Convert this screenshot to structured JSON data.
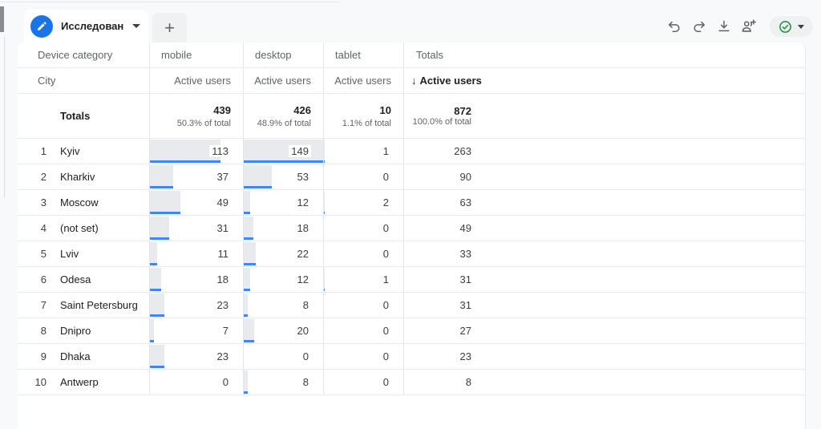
{
  "tab_bar": {
    "active_tab": {
      "label": "Исследовани…",
      "icon": "pencil-icon"
    },
    "new_tab_label": "+",
    "toolbar": {
      "icons": [
        "undo-icon",
        "redo-icon",
        "download-icon",
        "person-add-icon"
      ],
      "status_button": {
        "icon": "check-circle-icon",
        "state_color": "#1e8e3e"
      }
    }
  },
  "colors": {
    "accent_blue": "#1a73e8",
    "bar_blue": "#4285f4",
    "bar_gray": "#e9eaed",
    "status_green": "#1e8e3e"
  },
  "table": {
    "header": {
      "dimension_label": "Device category",
      "columns": [
        "mobile",
        "desktop",
        "tablet"
      ],
      "totals_label": "Totals",
      "row_dimension": "City",
      "metric_label": "Active users",
      "totals_metric_label": "Active users",
      "sort_icon": "↓"
    },
    "totals_row": {
      "label": "Totals",
      "cells": [
        {
          "value": "439",
          "pct": "50.3% of total"
        },
        {
          "value": "426",
          "pct": "48.9% of total"
        },
        {
          "value": "10",
          "pct": "1.1% of total"
        },
        {
          "value": "872",
          "pct": "100.0% of total"
        }
      ]
    },
    "max_value": 149,
    "rows": [
      {
        "rank": "1",
        "city": "Kyiv",
        "mobile": 113,
        "desktop": 149,
        "tablet": 1,
        "total": 263
      },
      {
        "rank": "2",
        "city": "Kharkiv",
        "mobile": 37,
        "desktop": 53,
        "tablet": 0,
        "total": 90
      },
      {
        "rank": "3",
        "city": "Moscow",
        "mobile": 49,
        "desktop": 12,
        "tablet": 2,
        "total": 63
      },
      {
        "rank": "4",
        "city": "(not set)",
        "mobile": 31,
        "desktop": 18,
        "tablet": 0,
        "total": 49
      },
      {
        "rank": "5",
        "city": "Lviv",
        "mobile": 11,
        "desktop": 22,
        "tablet": 0,
        "total": 33
      },
      {
        "rank": "6",
        "city": "Odesa",
        "mobile": 18,
        "desktop": 12,
        "tablet": 1,
        "total": 31
      },
      {
        "rank": "7",
        "city": "Saint Petersburg",
        "mobile": 23,
        "desktop": 8,
        "tablet": 0,
        "total": 31
      },
      {
        "rank": "8",
        "city": "Dnipro",
        "mobile": 7,
        "desktop": 20,
        "tablet": 0,
        "total": 27
      },
      {
        "rank": "9",
        "city": "Dhaka",
        "mobile": 23,
        "desktop": 0,
        "tablet": 0,
        "total": 23
      },
      {
        "rank": "10",
        "city": "Antwerp",
        "mobile": 0,
        "desktop": 8,
        "tablet": 0,
        "total": 8
      }
    ]
  }
}
